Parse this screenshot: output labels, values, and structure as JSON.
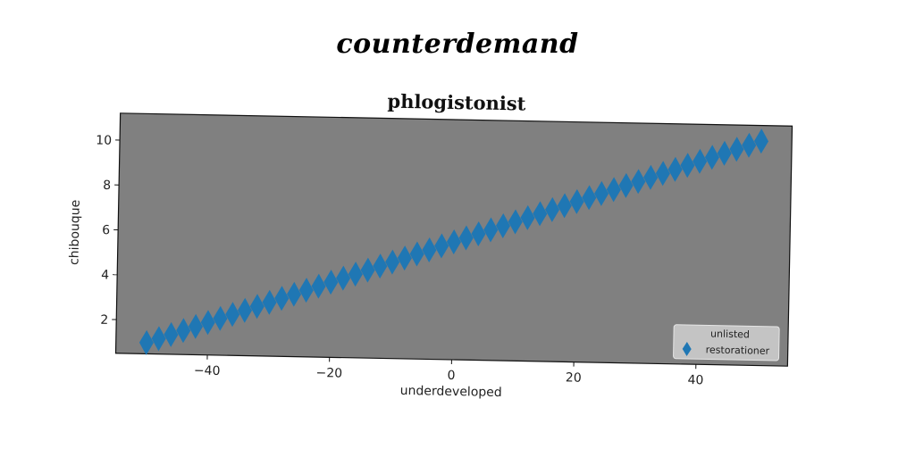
{
  "suptitle": "counterdemand",
  "chart_data": {
    "type": "scatter",
    "title": "phlogistonist",
    "xlabel": "underdeveloped",
    "ylabel": "chibouque",
    "xlim": [
      -55,
      55
    ],
    "ylim": [
      0.5,
      11.2
    ],
    "xticks": [
      -40,
      -20,
      0,
      20,
      40
    ],
    "xtick_labels": [
      "−40",
      "−20",
      "0",
      "20",
      "40"
    ],
    "yticks": [
      2,
      4,
      6,
      8,
      10
    ],
    "ytick_labels": [
      "2",
      "4",
      "6",
      "8",
      "10"
    ],
    "grid": false,
    "background_color": "#808080",
    "marker": "thin_diamond",
    "legend": {
      "title": "unlisted",
      "location": "lower-right"
    },
    "series": [
      {
        "name": "restorationer",
        "color": "#1f77b4",
        "x": [
          -50,
          -48,
          -46,
          -44,
          -42,
          -40,
          -38,
          -36,
          -34,
          -32,
          -30,
          -28,
          -26,
          -24,
          -22,
          -20,
          -18,
          -16,
          -14,
          -12,
          -10,
          -8,
          -6,
          -4,
          -2,
          0,
          2,
          4,
          6,
          8,
          10,
          12,
          14,
          16,
          18,
          20,
          22,
          24,
          26,
          28,
          30,
          32,
          34,
          36,
          38,
          40,
          42,
          44,
          46,
          48,
          50
        ],
        "y": [
          1.0,
          1.19,
          1.38,
          1.57,
          1.76,
          1.95,
          2.14,
          2.33,
          2.52,
          2.71,
          2.9,
          3.09,
          3.28,
          3.47,
          3.66,
          3.85,
          4.04,
          4.23,
          4.42,
          4.61,
          4.8,
          4.99,
          5.18,
          5.37,
          5.56,
          5.75,
          5.94,
          6.13,
          6.32,
          6.51,
          6.7,
          6.89,
          7.08,
          7.27,
          7.46,
          7.65,
          7.84,
          8.03,
          8.22,
          8.41,
          8.6,
          8.79,
          8.98,
          9.17,
          9.36,
          9.55,
          9.74,
          9.93,
          10.12,
          10.31,
          10.5
        ]
      }
    ]
  }
}
